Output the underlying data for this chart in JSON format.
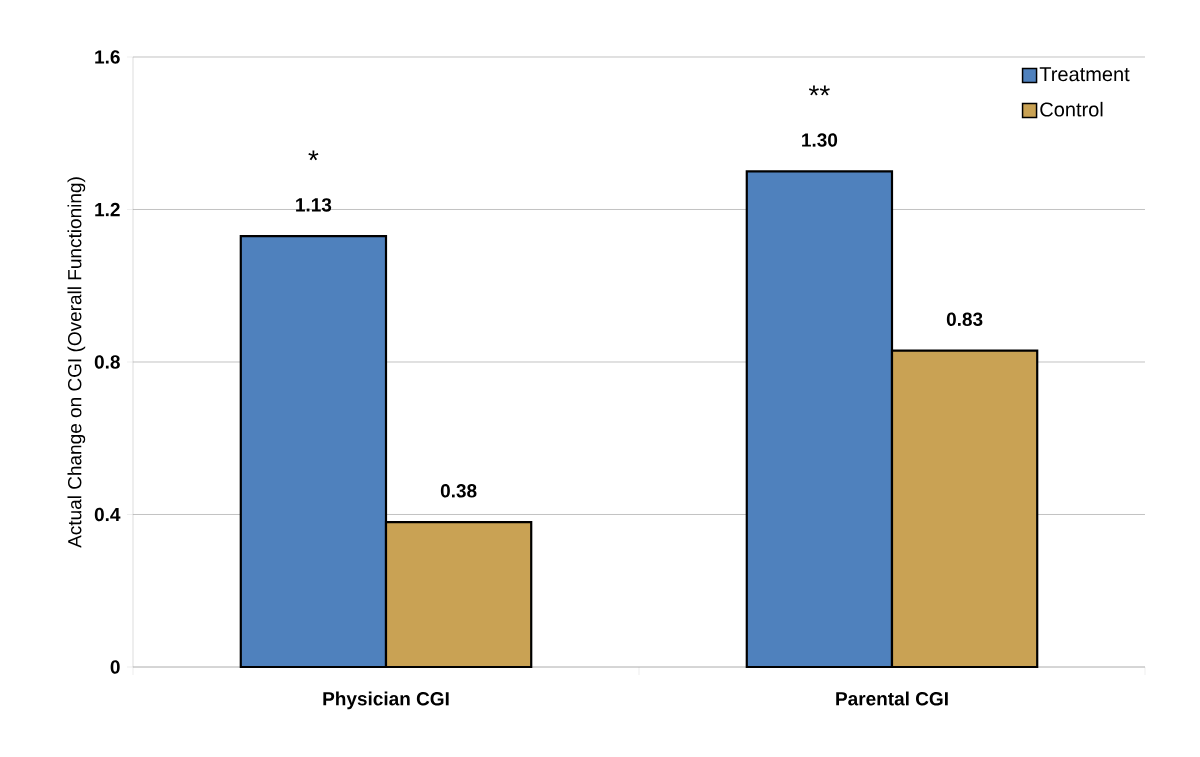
{
  "chart_data": {
    "type": "bar",
    "ylabel": "Actual Change on CGI (Overall Functioning)",
    "categories": [
      "Physician CGI",
      "Parental CGI"
    ],
    "series": [
      {
        "name": "Treatment",
        "color": "#4f81bd",
        "values": [
          1.13,
          1.3
        ],
        "value_labels": [
          "1.13",
          "1.30"
        ]
      },
      {
        "name": "Control",
        "color": "#c9a254",
        "values": [
          0.38,
          0.83
        ],
        "value_labels": [
          "0.38",
          "0.83"
        ]
      }
    ],
    "ylim": [
      0,
      1.6
    ],
    "yticks": [
      0,
      0.4,
      0.8,
      1.2,
      1.6
    ],
    "grid": "y",
    "legend": "top right",
    "annotations": [
      "*",
      "**"
    ]
  }
}
